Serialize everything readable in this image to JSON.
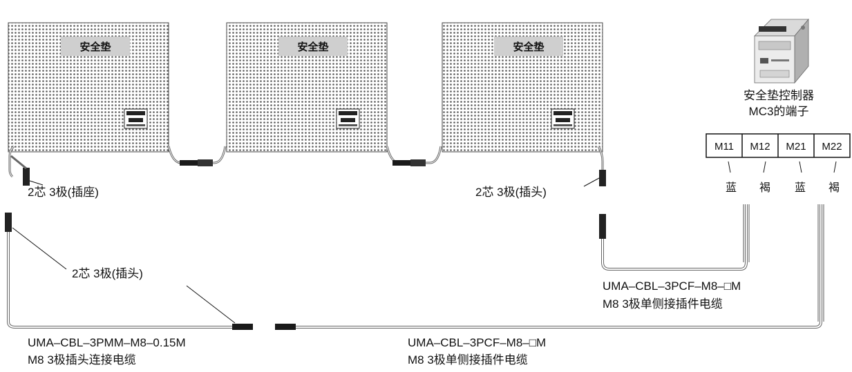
{
  "mat_title": "安全垫",
  "controller": {
    "title_line1": "安全垫控制器",
    "title_line2": "MC3的端子",
    "terminals": [
      {
        "label": "M11",
        "wire_color": "蓝"
      },
      {
        "label": "M12",
        "wire_color": "褐"
      },
      {
        "label": "M21",
        "wire_color": "蓝"
      },
      {
        "label": "M22",
        "wire_color": "褐"
      }
    ]
  },
  "labels": {
    "socket_left": "2芯 3极(插座)",
    "plug_right": "2芯 3极(插头)",
    "plug_middle": "2芯 3极(插头)"
  },
  "cables": {
    "pmm": {
      "line1": "UMA–CBL–3PMM–M8–0.15M",
      "line2": "M8 3极插头连接电缆"
    },
    "pcf_upper": {
      "line1": "UMA–CBL–3PCF–M8–□M",
      "line2": "M8 3极单侧接插件电缆"
    },
    "pcf_lower": {
      "line1": "UMA–CBL–3PCF–M8–□M",
      "line2": "M8 3极单侧接插件电缆"
    }
  }
}
